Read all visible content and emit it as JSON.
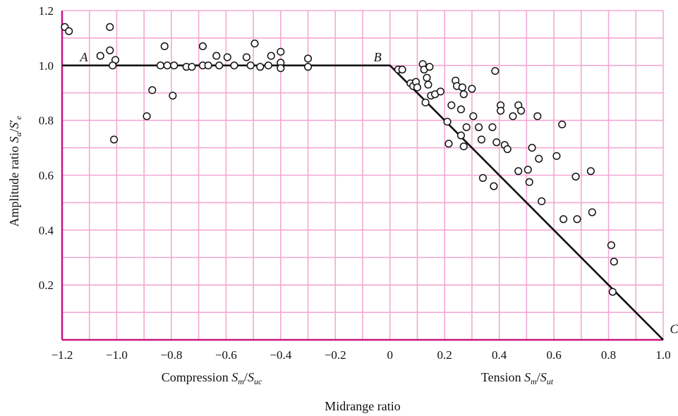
{
  "colors": {
    "grid": "#f4a8d2",
    "frame": "#c8157e",
    "line": "#111111",
    "marker_fill": "#ffffff",
    "marker_stroke": "#111111"
  },
  "chart_data": {
    "type": "scatter",
    "xlim": [
      -1.2,
      1.0
    ],
    "ylim": [
      0,
      1.2
    ],
    "grid": true,
    "x_ticks": [
      -1.2,
      -1.0,
      -0.8,
      -0.6,
      -0.4,
      -0.2,
      0,
      0.2,
      0.4,
      0.6,
      0.8,
      1.0
    ],
    "x_tick_labels": [
      "−1.2",
      "−1.0",
      "−0.8",
      "−0.6",
      "−0.4",
      "−0.2",
      "0",
      "0.2",
      "0.4",
      "0.6",
      "0.8",
      "1.0"
    ],
    "y_ticks": [
      0.2,
      0.4,
      0.6,
      0.8,
      1.0,
      1.2
    ],
    "y_tick_labels": [
      "0.2",
      "0.4",
      "0.6",
      "0.8",
      "1.0",
      "1.2"
    ],
    "ylabel": {
      "main": "Amplitude ratio ",
      "S": "S",
      "sub_a": "a",
      "slash": "/",
      "S2": "S",
      "prime": "′",
      "sub_e": "e"
    },
    "compression_label": {
      "prefix": "Compression ",
      "S": "S",
      "sub_m": "m",
      "slash": "/",
      "S2": "S",
      "sub_uc": "uc"
    },
    "tension_label": {
      "prefix": "Tension ",
      "S": "S",
      "sub_m": "m",
      "slash": "/",
      "S2": "S",
      "sub_ut": "ut"
    },
    "xlabel": "Midrange ratio",
    "line_points": [
      {
        "name": "A",
        "x": -1.2,
        "y": 1.0
      },
      {
        "name": "B",
        "x": 0.0,
        "y": 1.0
      },
      {
        "name": "C",
        "x": 1.0,
        "y": 0.0
      }
    ],
    "point_labels": [
      {
        "text": "A",
        "x": -1.12,
        "y": 1.03
      },
      {
        "text": "B",
        "x": -0.045,
        "y": 1.03
      },
      {
        "text": "C",
        "x": 1.04,
        "y": 0.04
      }
    ],
    "points": [
      [
        -1.19,
        1.14
      ],
      [
        -1.175,
        1.125
      ],
      [
        -1.06,
        1.035
      ],
      [
        -1.025,
        1.14
      ],
      [
        -1.025,
        1.055
      ],
      [
        -1.005,
        1.02
      ],
      [
        -1.015,
        1.0
      ],
      [
        -1.01,
        0.73
      ],
      [
        -0.89,
        0.815
      ],
      [
        -0.87,
        0.91
      ],
      [
        -0.84,
        1.0
      ],
      [
        -0.825,
        1.07
      ],
      [
        -0.815,
        1.0
      ],
      [
        -0.795,
        0.89
      ],
      [
        -0.79,
        1.0
      ],
      [
        -0.745,
        0.995
      ],
      [
        -0.725,
        0.995
      ],
      [
        -0.685,
        1.07
      ],
      [
        -0.685,
        1.0
      ],
      [
        -0.665,
        1.0
      ],
      [
        -0.635,
        1.035
      ],
      [
        -0.625,
        1.0
      ],
      [
        -0.595,
        1.03
      ],
      [
        -0.57,
        1.0
      ],
      [
        -0.525,
        1.03
      ],
      [
        -0.51,
        1.0
      ],
      [
        -0.495,
        1.08
      ],
      [
        -0.475,
        0.995
      ],
      [
        -0.445,
        1.0
      ],
      [
        -0.435,
        1.035
      ],
      [
        -0.4,
        1.05
      ],
      [
        -0.4,
        1.01
      ],
      [
        -0.4,
        0.99
      ],
      [
        -0.3,
        1.025
      ],
      [
        -0.3,
        0.995
      ],
      [
        0.03,
        0.985
      ],
      [
        0.045,
        0.985
      ],
      [
        0.075,
        0.935
      ],
      [
        0.085,
        0.925
      ],
      [
        0.095,
        0.94
      ],
      [
        0.1,
        0.92
      ],
      [
        0.12,
        1.005
      ],
      [
        0.125,
        0.985
      ],
      [
        0.135,
        0.955
      ],
      [
        0.14,
        0.93
      ],
      [
        0.145,
        0.995
      ],
      [
        0.15,
        0.89
      ],
      [
        0.165,
        0.895
      ],
      [
        0.185,
        0.905
      ],
      [
        0.13,
        0.865
      ],
      [
        0.21,
        0.795
      ],
      [
        0.215,
        0.715
      ],
      [
        0.225,
        0.855
      ],
      [
        0.24,
        0.945
      ],
      [
        0.245,
        0.925
      ],
      [
        0.26,
        0.84
      ],
      [
        0.26,
        0.745
      ],
      [
        0.265,
        0.92
      ],
      [
        0.27,
        0.895
      ],
      [
        0.27,
        0.705
      ],
      [
        0.28,
        0.775
      ],
      [
        0.3,
        0.915
      ],
      [
        0.305,
        0.815
      ],
      [
        0.325,
        0.775
      ],
      [
        0.335,
        0.73
      ],
      [
        0.34,
        0.59
      ],
      [
        0.375,
        0.775
      ],
      [
        0.38,
        0.56
      ],
      [
        0.385,
        0.98
      ],
      [
        0.39,
        0.72
      ],
      [
        0.405,
        0.855
      ],
      [
        0.405,
        0.835
      ],
      [
        0.42,
        0.71
      ],
      [
        0.43,
        0.695
      ],
      [
        0.45,
        0.815
      ],
      [
        0.47,
        0.855
      ],
      [
        0.47,
        0.615
      ],
      [
        0.48,
        0.835
      ],
      [
        0.505,
        0.62
      ],
      [
        0.51,
        0.575
      ],
      [
        0.52,
        0.7
      ],
      [
        0.54,
        0.815
      ],
      [
        0.545,
        0.66
      ],
      [
        0.555,
        0.505
      ],
      [
        0.61,
        0.67
      ],
      [
        0.63,
        0.785
      ],
      [
        0.635,
        0.44
      ],
      [
        0.68,
        0.595
      ],
      [
        0.685,
        0.44
      ],
      [
        0.735,
        0.615
      ],
      [
        0.74,
        0.465
      ],
      [
        0.81,
        0.345
      ],
      [
        0.82,
        0.285
      ],
      [
        0.815,
        0.175
      ]
    ]
  }
}
